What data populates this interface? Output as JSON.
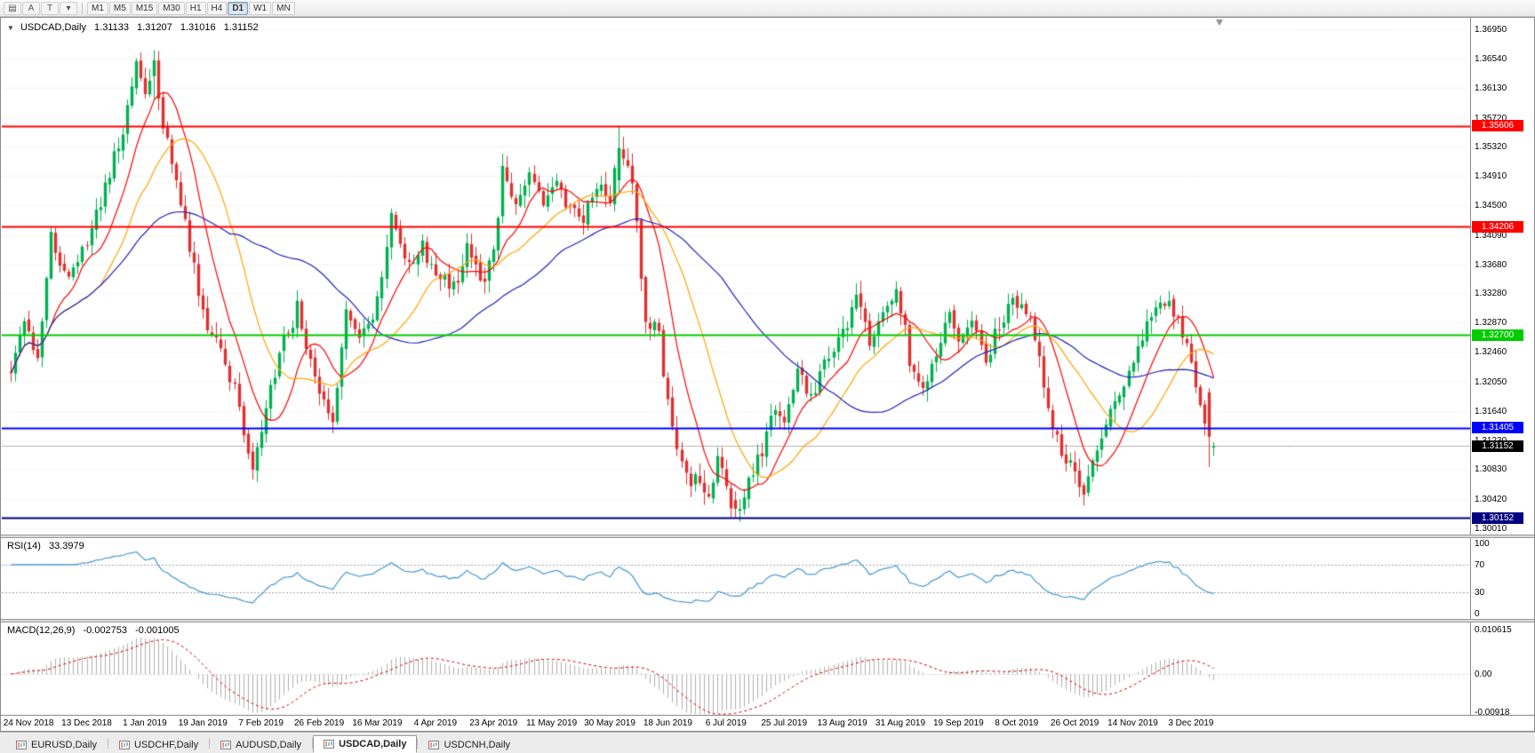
{
  "toolbar": {
    "icon_buttons": [
      {
        "name": "charts-menu-icon",
        "glyph": "▤"
      },
      {
        "name": "cursor-tool-icon",
        "glyph": "A"
      },
      {
        "name": "template-tool-icon",
        "glyph": "T"
      },
      {
        "name": "line-studies-icon",
        "glyph": "▾"
      }
    ],
    "timeframes": [
      "M1",
      "M5",
      "M15",
      "M30",
      "H1",
      "H4",
      "D1",
      "W1",
      "MN"
    ],
    "active_timeframe": "D1"
  },
  "chart": {
    "collapse_glyph": "▼",
    "symbol_title": "USDCAD,Daily",
    "ohlc": {
      "open": "1.31133",
      "high": "1.31207",
      "low": "1.31016",
      "close": "1.31152"
    },
    "price_axis": [
      "1.36950",
      "1.36540",
      "1.36130",
      "1.35720",
      "1.35320",
      "1.34910",
      "1.34500",
      "1.34090",
      "1.33680",
      "1.33280",
      "1.32870",
      "1.32460",
      "1.32050",
      "1.31640",
      "1.31230",
      "1.30830",
      "1.30420",
      "1.30010"
    ],
    "date_axis": [
      "24 Nov 2018",
      "13 Dec 2018",
      "1 Jan 2019",
      "19 Jan 2019",
      "7 Feb 2019",
      "26 Feb 2019",
      "16 Mar 2019",
      "4 Apr 2019",
      "23 Apr 2019",
      "11 May 2019",
      "30 May 2019",
      "18 Jun 2019",
      "6 Jul 2019",
      "25 Jul 2019",
      "13 Aug 2019",
      "31 Aug 2019",
      "19 Sep 2019",
      "8 Oct 2019",
      "26 Oct 2019",
      "14 Nov 2019",
      "3 Dec 2019"
    ],
    "levels": [
      {
        "name": "resistance-upper",
        "price": 1.35606,
        "label": "1.35606",
        "color": "#FF0000",
        "width": 2
      },
      {
        "name": "resistance-lower",
        "price": 1.34206,
        "label": "1.34206",
        "color": "#FF0000",
        "width": 2
      },
      {
        "name": "pivot-green",
        "price": 1.327,
        "label": "1.32700",
        "color": "#00CC00",
        "width": 2
      },
      {
        "name": "support-blue",
        "price": 1.31405,
        "label": "1.31405",
        "color": "#0000FF",
        "width": 2
      },
      {
        "name": "support-navy",
        "price": 1.30152,
        "label": "1.30152",
        "color": "#000080",
        "width": 2
      }
    ],
    "current_price": {
      "value": 1.31152,
      "label": "1.31152",
      "badge_color": "#000000",
      "line_color": "#B4B4B4"
    }
  },
  "rsi": {
    "label": "RSI(14)",
    "value": "33.3979",
    "period": 14,
    "guides": [
      70,
      30
    ],
    "axis_labels": [
      "100",
      "70",
      "30",
      "0"
    ],
    "line_color": "#4396D2"
  },
  "macd": {
    "label": "MACD(12,26,9)",
    "value_main": "-0.002753",
    "value_signal": "-0.001005",
    "fast": 12,
    "slow": 26,
    "signal": 9,
    "axis_top": "0.010615",
    "axis_zero": "0.00",
    "axis_bottom": "-0.00918",
    "scale_max": 0.0122,
    "scale_min": -0.0097,
    "hist_color": "#B0B0B0",
    "signal_color": "#D00000"
  },
  "tabbar": {
    "tabs": [
      "EURUSD,Daily",
      "USDCHF,Daily",
      "AUDUSD,Daily",
      "USDCAD,Daily",
      "USDCNH,Daily"
    ],
    "active": "USDCAD,Daily"
  },
  "chart_data": {
    "type": "candlestick",
    "symbol": "USDCAD",
    "timeframe": "Daily",
    "bar_count": 270,
    "date_label_first_index": 4,
    "date_label_step": 13,
    "price_axis_top": 1.371,
    "price_axis_bottom": 1.2992,
    "current_bar_ohlc": [
      1.31133,
      1.31207,
      1.31016,
      1.31152
    ],
    "close_waypoints": [
      [
        0,
        1.3225
      ],
      [
        3,
        1.329
      ],
      [
        6,
        1.324
      ],
      [
        9,
        1.3415
      ],
      [
        12,
        1.335
      ],
      [
        17,
        1.34
      ],
      [
        21,
        1.347
      ],
      [
        25,
        1.356
      ],
      [
        28,
        1.3645
      ],
      [
        30,
        1.36
      ],
      [
        32,
        1.3652
      ],
      [
        34,
        1.356
      ],
      [
        38,
        1.3455
      ],
      [
        43,
        1.33
      ],
      [
        47,
        1.325
      ],
      [
        50,
        1.319
      ],
      [
        54,
        1.3075
      ],
      [
        56,
        1.3135
      ],
      [
        60,
        1.3245
      ],
      [
        64,
        1.3305
      ],
      [
        69,
        1.32
      ],
      [
        72,
        1.3155
      ],
      [
        75,
        1.33
      ],
      [
        79,
        1.327
      ],
      [
        82,
        1.3315
      ],
      [
        85,
        1.3435
      ],
      [
        88,
        1.337
      ],
      [
        92,
        1.339
      ],
      [
        95,
        1.335
      ],
      [
        99,
        1.3335
      ],
      [
        102,
        1.3395
      ],
      [
        106,
        1.3345
      ],
      [
        108,
        1.3385
      ],
      [
        110,
        1.3505
      ],
      [
        113,
        1.345
      ],
      [
        116,
        1.3485
      ],
      [
        119,
        1.3445
      ],
      [
        121,
        1.348
      ],
      [
        125,
        1.3445
      ],
      [
        128,
        1.3435
      ],
      [
        131,
        1.3475
      ],
      [
        134,
        1.3455
      ],
      [
        136,
        1.353
      ],
      [
        139,
        1.348
      ],
      [
        142,
        1.329
      ],
      [
        145,
        1.327
      ],
      [
        147,
        1.318
      ],
      [
        150,
        1.3085
      ],
      [
        153,
        1.3065
      ],
      [
        156,
        1.304
      ],
      [
        158,
        1.3105
      ],
      [
        160,
        1.3055
      ],
      [
        162,
        1.3028
      ],
      [
        165,
        1.306
      ],
      [
        168,
        1.311
      ],
      [
        171,
        1.3165
      ],
      [
        173,
        1.314
      ],
      [
        176,
        1.322
      ],
      [
        179,
        1.3185
      ],
      [
        182,
        1.3235
      ],
      [
        186,
        1.327
      ],
      [
        189,
        1.3315
      ],
      [
        192,
        1.326
      ],
      [
        195,
        1.3295
      ],
      [
        198,
        1.3345
      ],
      [
        201,
        1.3235
      ],
      [
        204,
        1.3185
      ],
      [
        207,
        1.3245
      ],
      [
        210,
        1.329
      ],
      [
        212,
        1.3255
      ],
      [
        215,
        1.329
      ],
      [
        218,
        1.3235
      ],
      [
        221,
        1.3285
      ],
      [
        225,
        1.332
      ],
      [
        228,
        1.329
      ],
      [
        231,
        1.32
      ],
      [
        234,
        1.312
      ],
      [
        237,
        1.3085
      ],
      [
        240,
        1.3055
      ],
      [
        243,
        1.312
      ],
      [
        246,
        1.3175
      ],
      [
        249,
        1.321
      ],
      [
        251,
        1.3235
      ],
      [
        254,
        1.329
      ],
      [
        257,
        1.332
      ],
      [
        260,
        1.33
      ],
      [
        262,
        1.327
      ],
      [
        264,
        1.3225
      ],
      [
        266,
        1.3185
      ],
      [
        268,
        1.3128
      ],
      [
        269,
        1.31152
      ]
    ],
    "forced_bars": {
      "32": [
        1.363,
        1.3666,
        1.3598,
        1.3652
      ],
      "110": [
        1.3435,
        1.3522,
        1.3425,
        1.3505
      ],
      "136": [
        1.3485,
        1.356,
        1.3465,
        1.353
      ],
      "162": [
        1.304,
        1.3052,
        1.3016,
        1.3028
      ],
      "268": [
        1.319,
        1.3196,
        1.3086,
        1.3128
      ],
      "269": [
        1.31133,
        1.31207,
        1.31016,
        1.31152
      ]
    },
    "noise_seed": 1337,
    "candle_colors": {
      "up": "#00B050",
      "down": "#E03030"
    },
    "moving_averages": [
      {
        "name": "ma-fast",
        "period": 10,
        "color": "#FF0000"
      },
      {
        "name": "ma-mid",
        "period": 21,
        "color": "#FFA500"
      },
      {
        "name": "ma-slow",
        "period": 50,
        "color": "#2121BB"
      }
    ]
  }
}
